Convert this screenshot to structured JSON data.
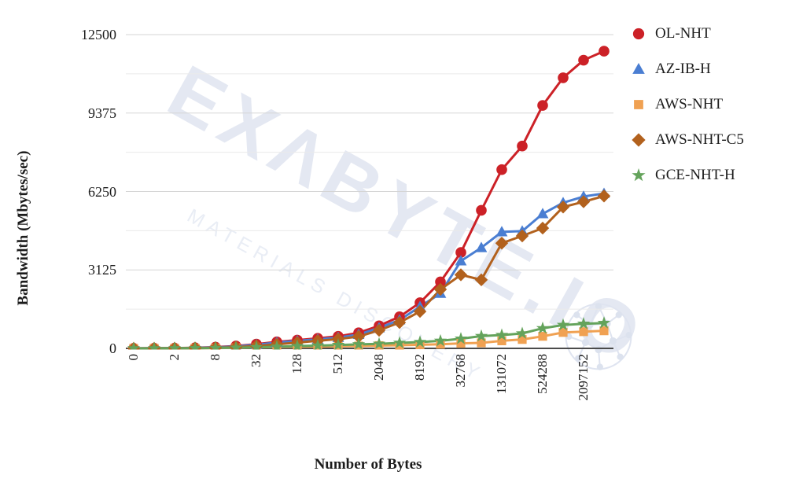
{
  "chart_data": {
    "type": "line",
    "title": "",
    "xlabel": "Number of Bytes",
    "ylabel": "Bandwidth (Mbytes/sec)",
    "x_values": [
      0,
      1,
      2,
      4,
      8,
      16,
      32,
      64,
      128,
      256,
      512,
      1024,
      2048,
      4096,
      8192,
      16384,
      32768,
      65536,
      131072,
      262144,
      524288,
      1048576,
      2097152,
      4194304
    ],
    "x_tick_labels": [
      "0",
      "2",
      "8",
      "32",
      "128",
      "512",
      "2048",
      "8192",
      "32768",
      "131072",
      "524288",
      "2097152"
    ],
    "x_tick_every": 2,
    "y_ticks": [
      0,
      3125,
      6250,
      9375,
      12500
    ],
    "y_minor_ticks": [
      1562.5,
      4687.5,
      7812.5,
      10937.5
    ],
    "ylim": [
      0,
      12500
    ],
    "grid": "horizontal",
    "legend_position": "right",
    "series": [
      {
        "name": "OL-NHT",
        "color": "#cc2127",
        "marker": "circle",
        "values": [
          3,
          6,
          12,
          25,
          50,
          95,
          170,
          260,
          330,
          400,
          480,
          620,
          900,
          1260,
          1820,
          2650,
          3820,
          5500,
          7120,
          8060,
          9680,
          10780,
          11480,
          11840
        ]
      },
      {
        "name": "AZ-IB-H",
        "color": "#4a7ed2",
        "marker": "triangle",
        "values": [
          2,
          5,
          10,
          20,
          40,
          80,
          145,
          230,
          300,
          360,
          430,
          550,
          815,
          1130,
          1660,
          2190,
          3480,
          4010,
          4640,
          4670,
          5360,
          5800,
          6050,
          6170
        ]
      },
      {
        "name": "AWS-NHT",
        "color": "#f0a152",
        "marker": "square",
        "values": [
          1,
          2,
          3,
          6,
          12,
          20,
          35,
          50,
          62,
          72,
          85,
          95,
          110,
          125,
          145,
          165,
          200,
          220,
          300,
          355,
          480,
          635,
          665,
          700
        ]
      },
      {
        "name": "AWS-NHT-C5",
        "color": "#b2611d",
        "marker": "diamond",
        "values": [
          1,
          3,
          6,
          12,
          25,
          50,
          95,
          160,
          230,
          300,
          370,
          470,
          720,
          1030,
          1470,
          2350,
          2930,
          2730,
          4190,
          4480,
          4790,
          5630,
          5840,
          6070
        ]
      },
      {
        "name": "GCE-NHT-H",
        "color": "#64a35b",
        "marker": "star",
        "values": [
          1,
          2,
          4,
          8,
          15,
          28,
          45,
          65,
          90,
          110,
          135,
          160,
          180,
          220,
          250,
          300,
          385,
          490,
          530,
          595,
          800,
          930,
          980,
          1010
        ]
      }
    ]
  },
  "watermark": {
    "brand": "EXΛBYTE.IO",
    "tagline": "MATERIALS DISCOVERY",
    "color": "#e4e8f2"
  },
  "colors": {
    "grid_major": "#d5d5d5",
    "grid_minor": "#eaeaea",
    "axis_line": "#4b4b4b",
    "text": "#1c1c1c"
  }
}
